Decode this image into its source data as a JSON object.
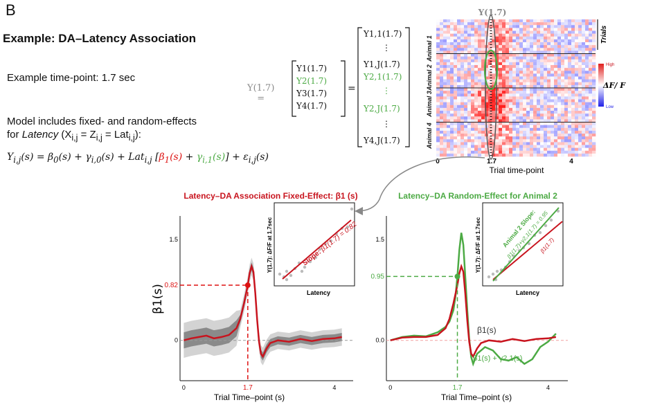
{
  "panel_letter": "B",
  "heading": "Example: DA–Latency Association",
  "time_point_text": "Example time-point: 1.7 sec",
  "model_line1": "Model includes fixed- and random-effects",
  "model_line2_a": "for ",
  "model_line2_b": "Latency",
  "model_line2_c": " (X",
  "model_line2_d": "i,j",
  "model_line2_e": " = Z",
  "model_line2_f": "i,j",
  "model_line2_g": " = Lat",
  "model_line2_h": "i,j",
  "model_line2_i": "):",
  "equation": {
    "lhs": "Y",
    "lhs_sub": "i,j",
    "part1": "(s) = β",
    "sub0": "0",
    "part2": "(s) + γ",
    "sub_i0": "i,0",
    "part3": "(s) + Lat",
    "sub_ij": "i,j",
    "bracket_open": " [",
    "beta1": "β",
    "beta1_sub": "1",
    "beta1_s": "(s)",
    "plus": " + ",
    "gamma": "γ",
    "gamma_sub": "i,1",
    "gamma_s": "(s)",
    "bracket_close": "] + ε",
    "eps_sub": "i,j",
    "tail": "(s)"
  },
  "vector_eq": {
    "lhs": "Y(1.7) =",
    "vec": [
      "Y1(1.7)",
      "Y2(1.7)",
      "Y3(1.7)",
      "Y4(1.7)"
    ],
    "equals": "=",
    "expanded": [
      "Y1,1(1.7)",
      "⋮",
      "Y1,J(1.7)",
      "Y2,1(1.7)",
      "⋮",
      "Y2,J(1.7)",
      "⋮",
      "Y4,J(1.7)"
    ]
  },
  "heatmap": {
    "top_label": "Y(1.7)",
    "animals": [
      "Animal 1",
      "Animal 2",
      "Animal 3",
      "Animal 4"
    ],
    "trials_label": "Trials",
    "legend_high": "High",
    "legend_low": "Low",
    "legend_title": "ΔF/ F",
    "x_ticks": [
      "0",
      "1.7",
      "4"
    ],
    "xlabel": "Trial time-point",
    "colors": {
      "high": "#e0201e",
      "mid": "#ffffff",
      "low": "#2020e8"
    }
  },
  "chart_data": [
    {
      "type": "line",
      "title": "Latency–DA Association Fixed-Effect: β1 (s)",
      "xlabel": "Trial Time–point (s)",
      "ylabel": "β1(s)",
      "x_ticks": [
        "0",
        "1.7",
        "4"
      ],
      "y_ticks": [
        "0",
        "0.82",
        "1.5"
      ],
      "xlim": [
        -0.1,
        4.5
      ],
      "ylim": [
        -0.6,
        1.85
      ],
      "highlight": {
        "x": 1.7,
        "y": 0.82,
        "x_label": "1.7",
        "y_label": "0.82"
      },
      "series": [
        {
          "name": "β1(s)",
          "color": "#c8141e",
          "x": [
            0,
            0.2,
            0.4,
            0.6,
            0.8,
            1.0,
            1.2,
            1.4,
            1.5,
            1.6,
            1.7,
            1.75,
            1.8,
            1.85,
            1.9,
            1.95,
            2.0,
            2.05,
            2.1,
            2.2,
            2.3,
            2.5,
            2.8,
            3.1,
            3.4,
            3.7,
            4.0,
            4.2
          ],
          "y": [
            0,
            0.03,
            0.05,
            0.07,
            0.03,
            0.05,
            0.08,
            0.18,
            0.32,
            0.55,
            0.82,
            1.0,
            1.1,
            1.02,
            0.7,
            0.3,
            -0.02,
            -0.2,
            -0.24,
            -0.12,
            -0.04,
            0.0,
            -0.02,
            0.02,
            -0.01,
            0.02,
            0.03,
            0.05
          ]
        }
      ],
      "inset": {
        "ylabel": "Y(1.7):  ΔF/F at 1.7sec",
        "xlabel": "Latency",
        "slope_label": "Slope: ",
        "slope_value": "β1(1.7) = 0.82"
      }
    },
    {
      "type": "line",
      "title": "Latency–DA Random-Effect for Animal 2",
      "xlabel": "Trial Time–point (s)",
      "x_ticks": [
        "0",
        "1.7",
        "4"
      ],
      "y_ticks": [
        "0.0",
        "0.95",
        "1.5"
      ],
      "xlim": [
        -0.1,
        4.5
      ],
      "ylim": [
        -0.6,
        1.85
      ],
      "highlight": {
        "x": 1.7,
        "y": 0.95,
        "x_label": "1.7",
        "y_label": "0.95"
      },
      "series": [
        {
          "name": "β1(s)",
          "color": "#c8141e",
          "x": [
            0,
            0.3,
            0.6,
            0.9,
            1.2,
            1.4,
            1.5,
            1.6,
            1.7,
            1.75,
            1.8,
            1.85,
            1.9,
            1.95,
            2.0,
            2.05,
            2.1,
            2.2,
            2.3,
            2.5,
            2.8,
            3.1,
            3.4,
            3.7,
            4.0,
            4.2
          ],
          "y": [
            0,
            0.04,
            0.05,
            0.05,
            0.08,
            0.18,
            0.32,
            0.55,
            0.82,
            1.0,
            1.1,
            1.02,
            0.7,
            0.3,
            -0.02,
            -0.2,
            -0.24,
            -0.12,
            -0.04,
            0.0,
            -0.02,
            0.02,
            -0.01,
            0.02,
            0.03,
            0.05
          ]
        },
        {
          "name": "β1(s) + γ2,1(s)",
          "color": "#4caa44",
          "x": [
            0,
            0.3,
            0.6,
            0.9,
            1.2,
            1.4,
            1.5,
            1.6,
            1.65,
            1.7,
            1.75,
            1.8,
            1.85,
            1.9,
            1.95,
            2.0,
            2.05,
            2.1,
            2.2,
            2.4,
            2.6,
            2.8,
            3.0,
            3.2,
            3.4,
            3.6,
            3.8,
            4.0,
            4.2
          ],
          "y": [
            0,
            0.05,
            0.07,
            0.06,
            0.12,
            0.2,
            0.28,
            0.45,
            0.65,
            0.95,
            1.35,
            1.6,
            1.42,
            0.95,
            0.45,
            0.02,
            -0.25,
            -0.35,
            -0.2,
            -0.1,
            -0.15,
            -0.28,
            -0.3,
            -0.25,
            -0.35,
            -0.28,
            -0.1,
            -0.02,
            0.1
          ]
        }
      ],
      "inset": {
        "ylabel": "Y(1.7):  ΔF/F at 1.7sec",
        "xlabel": "Latency",
        "slope_label": "Animal 2 Slope:",
        "slope_value": "β1(1.7)+γ2,1(1.7) = 0.95",
        "red_label": "β1(1.7)"
      }
    }
  ]
}
